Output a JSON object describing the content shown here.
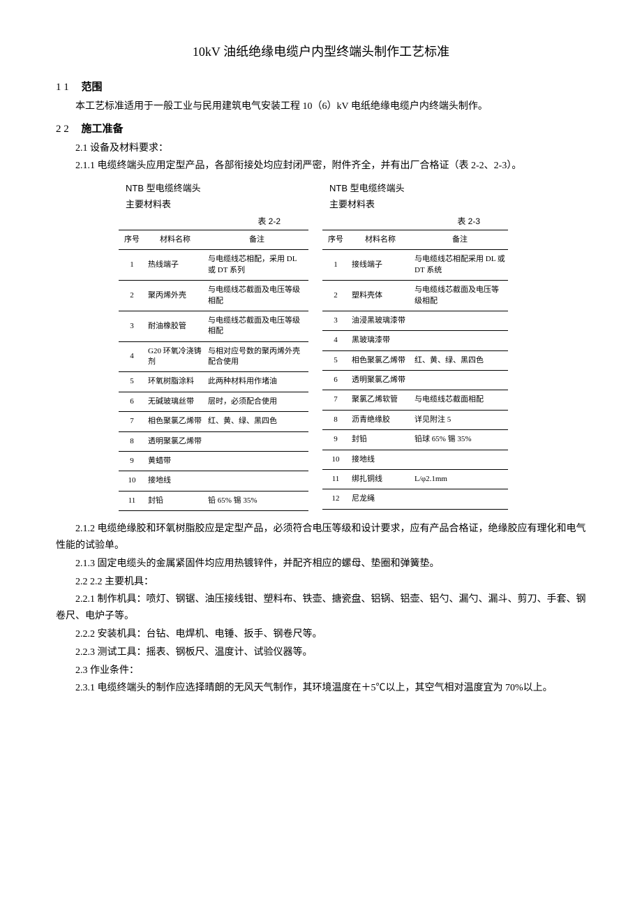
{
  "title": "10kV 油纸绝缘电缆户内型终端头制作工艺标准",
  "sec1": {
    "head_num": "1   1",
    "head_label": "范围",
    "p1": "本工艺标准适用于一般工业与民用建筑电气安装工程 10（6）kV 电纸绝缘电缆户内终端头制作。"
  },
  "sec2": {
    "head_num": "2   2",
    "head_label": "施工准备",
    "p21": "2.1   设备及材料要求：",
    "p211": "2.1.1   电缆终端头应用定型产品，各部衔接处均应封闭严密，附件齐全，并有出厂合格证（表 2-2、2-3）。"
  },
  "tableA": {
    "title": "NTB 型电缆终端头",
    "subtitle": "主要材料表",
    "caption": "表 2-2",
    "headers": [
      "序号",
      "材料名称",
      "备注"
    ],
    "rows": [
      [
        "1",
        "热线端子",
        "与电缆线芯相配，采用 DL 或 DT 系列"
      ],
      [
        "2",
        "聚丙烯外壳",
        "与电缆线芯截面及电压等级相配"
      ],
      [
        "3",
        "耐油橡胶管",
        "与电缆线芯截面及电压等级相配"
      ],
      [
        "4",
        "G20 环氧冷浇铸剂",
        "与相对应号数的聚丙烯外壳配合使用"
      ],
      [
        "5",
        "环氧树脂涂料",
        "此两种材料用作堵油"
      ],
      [
        "6",
        "无碱玻璃丝带",
        "层时，必须配合使用"
      ],
      [
        "7",
        "相色聚氯乙烯带",
        "红、黄、绿、黑四色"
      ],
      [
        "8",
        "透明聚氯乙烯带",
        ""
      ],
      [
        "9",
        "黄蜡带",
        ""
      ],
      [
        "10",
        "接地线",
        ""
      ],
      [
        "11",
        "封铅",
        "铅 65%   锡 35%"
      ]
    ]
  },
  "tableB": {
    "title": "NTB 型电缆终端头",
    "subtitle": "主要材料表",
    "caption": "表 2-3",
    "headers": [
      "序号",
      "材料名称",
      "备注"
    ],
    "rows": [
      [
        "1",
        "接线端子",
        "与电缆线芯相配采用 DL 或 DT 系统"
      ],
      [
        "2",
        "塑料壳体",
        "与电缆线芯截面及电压等级相配"
      ],
      [
        "3",
        "油浸黑玻璃漆带",
        ""
      ],
      [
        "4",
        "黑玻璃漆带",
        ""
      ],
      [
        "5",
        "相色聚氯乙烯带",
        "红、黄、绿、黑四色"
      ],
      [
        "6",
        "透明聚氯乙烯带",
        ""
      ],
      [
        "7",
        "聚氯乙烯软管",
        "与电缆线芯截面相配"
      ],
      [
        "8",
        "沥青绝缘胶",
        "详见附注 5"
      ],
      [
        "9",
        "封铅",
        "铅球 65%   锡 35%"
      ],
      [
        "10",
        "接地线",
        ""
      ],
      [
        "11",
        "绑扎铜线",
        "L/φ2.1mm"
      ],
      [
        "12",
        "尼龙绳",
        ""
      ]
    ]
  },
  "post": {
    "p212": "2.1.2   电缆绝缘胶和环氧树脂胶应是定型产品，必须符合电压等级和设计要求，应有产品合格证，绝缘胶应有理化和电气性能的试验单。",
    "p213": "2.1.3   固定电缆头的金属紧固件均应用热镀锌件，并配齐相应的螺母、垫圈和弹簧垫。",
    "p22": "2.2   2.2   主要机具：",
    "p221": "2.2.1   制作机具：喷灯、钢锯、油压接线钳、塑料布、铁壶、搪瓷盘、铝锅、铝壶、铝勺、漏勺、漏斗、剪刀、手套、钢卷尺、电炉子等。",
    "p222": "2.2.2   安装机具：台钻、电焊机、电锤、扳手、钢卷尺等。",
    "p223": "2.2.3   测试工具：摇表、钢板尺、温度计、试验仪器等。",
    "p23": "2.3   作业条件：",
    "p231": "2.3.1   电缆终端头的制作应选择晴朗的无风天气制作，其环境温度在＋5℃以上，其空气相对温度宜为 70%以上。"
  }
}
